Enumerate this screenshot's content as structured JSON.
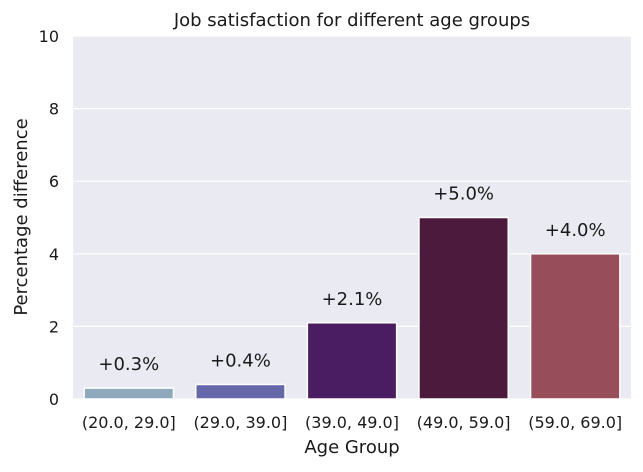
{
  "chart_data": {
    "type": "bar",
    "title": "Job satisfaction for different age groups",
    "xlabel": "Age Group",
    "ylabel": "Percentage difference",
    "ylim": [
      0,
      10
    ],
    "yticks": [
      0,
      2,
      4,
      6,
      8,
      10
    ],
    "grid": true,
    "categories": [
      "(20.0, 29.0]",
      "(29.0, 39.0]",
      "(39.0, 49.0]",
      "(49.0, 59.0]",
      "(59.0, 69.0]"
    ],
    "values": [
      0.3,
      0.4,
      2.1,
      5.0,
      4.0
    ],
    "data_labels": [
      "+0.3%",
      "+0.4%",
      "+2.1%",
      "+5.0%",
      "+4.0%"
    ],
    "colors": [
      "#8fa8bb",
      "#6567a8",
      "#4a1c62",
      "#4b1a3c",
      "#974d5a"
    ],
    "background_color": "#eaeaf2"
  }
}
